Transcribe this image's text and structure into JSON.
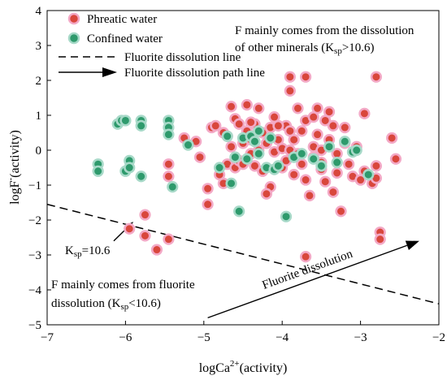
{
  "chart_data": {
    "type": "scatter",
    "xlabel_main": "logCa",
    "xlabel_sup": "2+",
    "xlabel_tail": "(activity)",
    "ylabel_main": "logF",
    "ylabel_sup": "-",
    "ylabel_tail": "(activity)",
    "xlim": [
      -7,
      -2
    ],
    "ylim": [
      -5,
      4
    ],
    "xticks": [
      -7,
      -6,
      -5,
      -4,
      -3,
      -2
    ],
    "yticks": [
      -5,
      -4,
      -3,
      -2,
      -1,
      0,
      1,
      2,
      3,
      4
    ],
    "grid": false,
    "legend_position": "top-left",
    "legend": {
      "phreatic": "Phreatic water",
      "confined": "Confined water",
      "dissolution_line": "Fluorite dissolution line",
      "path_line": "Fluorite dissolution path line"
    },
    "colors": {
      "phreatic": "#d9473c",
      "phreatic_halo": "#f3a9c6",
      "confined": "#2e9a6c",
      "confined_halo": "#a7d9c8"
    },
    "annotations": {
      "upper_line1": "F mainly comes from the dissolution",
      "upper_line2a": "of other minerals (K",
      "upper_line2_sub": "sp",
      "upper_line2b": ">10.6)",
      "lower_line1": "F mainly comes from fluorite",
      "lower_line2a": "dissolution (K",
      "lower_line2_sub": "sp",
      "lower_line2b": "<10.6)",
      "ksp_a": "K",
      "ksp_sub": "sp",
      "ksp_b": "=10.6",
      "path_label": "Fluorite dissolution"
    },
    "dissolution_line": {
      "x": [
        -7,
        -2
      ],
      "y": [
        -1.55,
        -4.4
      ]
    },
    "path_arrow": {
      "from": [
        -4.95,
        -4.8
      ],
      "to": [
        -2.25,
        -2.6
      ]
    },
    "ksp_arrow": {
      "from": [
        -6.15,
        -2.6
      ],
      "to": [
        -5.9,
        -2.05
      ]
    },
    "series": [
      {
        "name": "Phreatic water",
        "points": [
          [
            -5.95,
            -2.25
          ],
          [
            -5.75,
            -1.85
          ],
          [
            -5.75,
            -2.45
          ],
          [
            -5.6,
            -2.85
          ],
          [
            -5.45,
            -2.55
          ],
          [
            -5.45,
            -0.75
          ],
          [
            -5.45,
            -0.4
          ],
          [
            -5.25,
            0.35
          ],
          [
            -5.05,
            -0.2
          ],
          [
            -5.1,
            0.25
          ],
          [
            -4.95,
            -1.1
          ],
          [
            -4.95,
            -1.55
          ],
          [
            -4.9,
            0.65
          ],
          [
            -4.85,
            0.7
          ],
          [
            -4.8,
            -0.7
          ],
          [
            -4.75,
            -0.95
          ],
          [
            -4.75,
            0.5
          ],
          [
            -4.7,
            0.4
          ],
          [
            -4.7,
            -0.4
          ],
          [
            -4.65,
            1.25
          ],
          [
            -4.65,
            0.1
          ],
          [
            -4.6,
            -0.5
          ],
          [
            -4.6,
            0.9
          ],
          [
            -4.55,
            -0.3
          ],
          [
            -4.55,
            0.75
          ],
          [
            -4.5,
            -0.4
          ],
          [
            -4.5,
            0.2
          ],
          [
            -4.45,
            1.3
          ],
          [
            -4.45,
            0.55
          ],
          [
            -4.4,
            -0.1
          ],
          [
            -4.4,
            0.3
          ],
          [
            -4.35,
            0.75
          ],
          [
            -4.35,
            -0.45
          ],
          [
            -4.3,
            0.0
          ],
          [
            -4.3,
            1.2
          ],
          [
            -4.25,
            0.5
          ],
          [
            -4.25,
            -0.6
          ],
          [
            -4.2,
            0.2
          ],
          [
            -4.15,
            -1.05
          ],
          [
            -4.15,
            0.65
          ],
          [
            -4.1,
            0.95
          ],
          [
            -4.1,
            -0.05
          ],
          [
            -4.05,
            0.3
          ],
          [
            -4.0,
            -0.5
          ],
          [
            -4.0,
            0.05
          ],
          [
            -3.95,
            0.7
          ],
          [
            -3.95,
            -0.3
          ],
          [
            -3.9,
            1.7
          ],
          [
            -3.9,
            0.55
          ],
          [
            -3.9,
            0.0
          ],
          [
            -3.9,
            2.1
          ],
          [
            -3.85,
            0.3
          ],
          [
            -3.85,
            -0.7
          ],
          [
            -3.8,
            1.2
          ],
          [
            -3.8,
            -0.1
          ],
          [
            -3.75,
            0.55
          ],
          [
            -3.75,
            -0.4
          ],
          [
            -3.7,
            2.1
          ],
          [
            -3.7,
            0.85
          ],
          [
            -3.7,
            -0.85
          ],
          [
            -3.7,
            -3.05
          ],
          [
            -3.65,
            -1.3
          ],
          [
            -3.6,
            0.1
          ],
          [
            -3.6,
            -0.2
          ],
          [
            -3.55,
            1.2
          ],
          [
            -3.55,
            0.45
          ],
          [
            -3.5,
            -0.55
          ],
          [
            -3.5,
            0.0
          ],
          [
            -3.45,
            0.85
          ],
          [
            -3.45,
            -0.9
          ],
          [
            -3.4,
            1.1
          ],
          [
            -3.4,
            0.3
          ],
          [
            -3.35,
            -1.2
          ],
          [
            -3.35,
            0.7
          ],
          [
            -3.3,
            -0.1
          ],
          [
            -3.3,
            -0.65
          ],
          [
            -3.25,
            -1.75
          ],
          [
            -3.2,
            0.2
          ],
          [
            -3.15,
            -0.4
          ],
          [
            -3.1,
            -0.75
          ],
          [
            -3.05,
            0.1
          ],
          [
            -3.0,
            -0.85
          ],
          [
            -2.95,
            1.05
          ],
          [
            -2.95,
            -0.6
          ],
          [
            -2.85,
            -0.95
          ],
          [
            -2.8,
            -0.8
          ],
          [
            -2.8,
            -0.45
          ],
          [
            -2.75,
            -2.35
          ],
          [
            -2.75,
            -2.55
          ],
          [
            -2.8,
            2.1
          ],
          [
            -2.6,
            0.35
          ],
          [
            -2.55,
            -0.25
          ],
          [
            -3.6,
            0.95
          ],
          [
            -4.4,
            0.8
          ],
          [
            -4.05,
            0.7
          ],
          [
            -3.2,
            0.65
          ],
          [
            -4.2,
            -1.25
          ],
          [
            -3.5,
            -0.35
          ]
        ]
      },
      {
        "name": "Confined water",
        "points": [
          [
            -6.35,
            -0.4
          ],
          [
            -6.35,
            -0.6
          ],
          [
            -6.1,
            0.75
          ],
          [
            -6.05,
            0.85
          ],
          [
            -6.0,
            0.85
          ],
          [
            -6.0,
            -0.6
          ],
          [
            -5.95,
            -0.3
          ],
          [
            -5.95,
            -0.5
          ],
          [
            -5.8,
            0.85
          ],
          [
            -5.8,
            0.7
          ],
          [
            -5.8,
            -0.75
          ],
          [
            -5.45,
            0.85
          ],
          [
            -5.45,
            0.65
          ],
          [
            -5.45,
            0.45
          ],
          [
            -5.4,
            -1.05
          ],
          [
            -5.2,
            0.15
          ],
          [
            -4.8,
            -0.5
          ],
          [
            -4.7,
            0.4
          ],
          [
            -4.65,
            -0.95
          ],
          [
            -4.6,
            -0.2
          ],
          [
            -4.55,
            -1.75
          ],
          [
            -4.5,
            0.35
          ],
          [
            -4.45,
            -0.25
          ],
          [
            -4.4,
            0.4
          ],
          [
            -4.35,
            0.25
          ],
          [
            -4.3,
            0.55
          ],
          [
            -4.3,
            -0.1
          ],
          [
            -4.2,
            -0.5
          ],
          [
            -4.15,
            0.35
          ],
          [
            -4.1,
            -0.55
          ],
          [
            -4.05,
            -0.45
          ],
          [
            -3.95,
            -1.9
          ],
          [
            -3.85,
            -0.2
          ],
          [
            -3.75,
            -0.1
          ],
          [
            -3.5,
            -0.45
          ],
          [
            -3.3,
            -0.35
          ],
          [
            -3.2,
            0.25
          ],
          [
            -3.1,
            -0.05
          ],
          [
            -3.05,
            0.0
          ],
          [
            -2.9,
            -0.7
          ],
          [
            -3.4,
            0.1
          ],
          [
            -3.6,
            -0.25
          ]
        ]
      }
    ]
  }
}
